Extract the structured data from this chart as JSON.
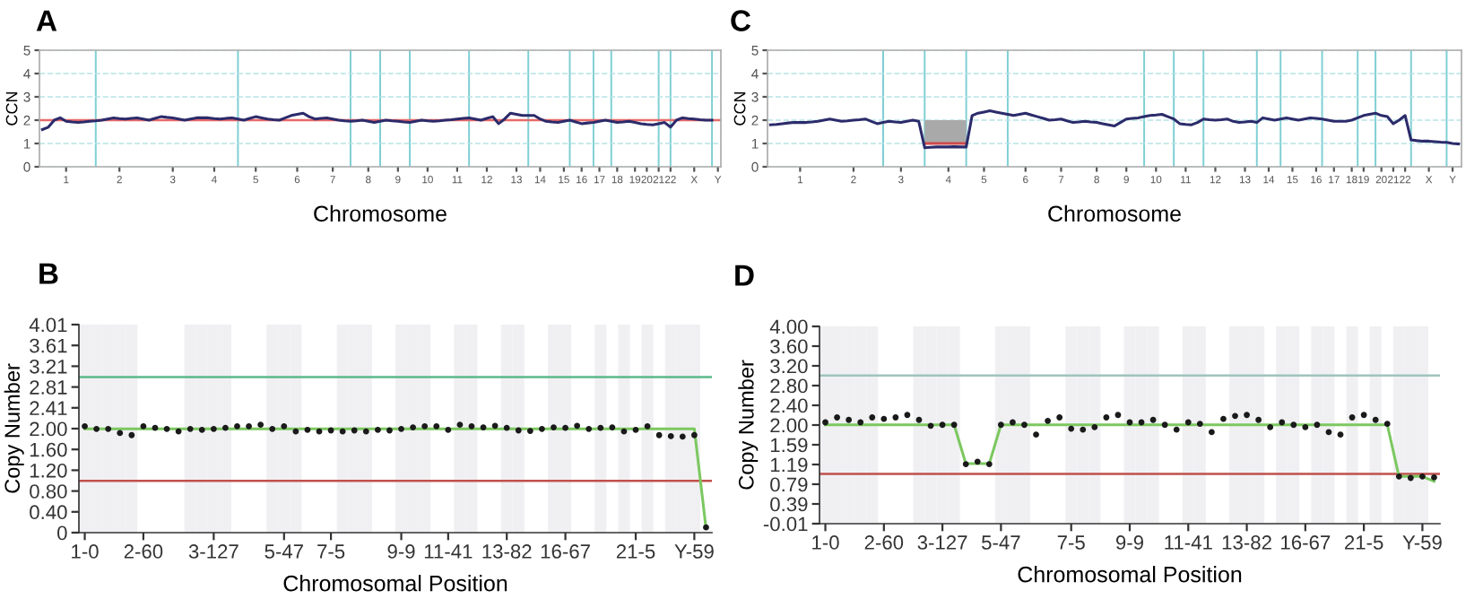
{
  "chart_data": [
    {
      "type": "line",
      "title": "A",
      "xlabel": "Chromosome",
      "ylabel": "CCN",
      "ylim": [
        0,
        5
      ],
      "yticks": [
        0,
        1,
        2,
        3,
        4,
        5
      ],
      "grid": "y",
      "categories": [
        null,
        null,
        null,
        null,
        "1",
        null,
        null,
        null,
        null,
        null,
        null,
        null,
        null,
        "2",
        null,
        null,
        null,
        null,
        null,
        null,
        null,
        null,
        "3",
        null,
        null,
        null,
        null,
        null,
        null,
        "4",
        null,
        null,
        null,
        null,
        null,
        null,
        "5",
        null,
        null,
        null,
        null,
        null,
        null,
        "6",
        null,
        null,
        null,
        null,
        null,
        "7",
        null,
        null,
        null,
        null,
        null,
        "8",
        null,
        null,
        null,
        null,
        "9",
        null,
        null,
        null,
        null,
        "10",
        null,
        null,
        null,
        null,
        "11",
        null,
        null,
        null,
        null,
        "12",
        null,
        null,
        null,
        null,
        "13",
        null,
        null,
        null,
        "14",
        null,
        null,
        null,
        "15",
        null,
        null,
        "16",
        null,
        null,
        "17",
        null,
        null,
        "18",
        null,
        null,
        "19",
        null,
        "20",
        null,
        "21",
        null,
        "22",
        null,
        null,
        null,
        "X",
        null,
        null,
        null,
        "Y"
      ],
      "ref_lines": [
        {
          "axis": "y",
          "value": 2,
          "color": "#e86a6a"
        }
      ],
      "series": [
        {
          "type": "bar",
          "color": "#7fcfd4",
          "values": [
            null,
            null,
            null,
            null,
            null,
            null,
            null,
            null,
            null,
            5,
            null,
            null,
            null,
            null,
            null,
            null,
            null,
            null,
            null,
            null,
            null,
            null,
            null,
            null,
            null,
            null,
            null,
            null,
            null,
            null,
            null,
            null,
            null,
            5,
            null,
            null,
            null,
            null,
            null,
            null,
            null,
            null,
            null,
            null,
            null,
            null,
            null,
            null,
            null,
            null,
            null,
            null,
            5,
            null,
            null,
            null,
            null,
            5,
            null,
            null,
            null,
            null,
            5,
            null,
            null,
            null,
            null,
            null,
            null,
            null,
            null,
            null,
            5,
            null,
            null,
            null,
            null,
            null,
            null,
            null,
            null,
            null,
            5,
            null,
            null,
            null,
            null,
            null,
            null,
            5,
            null,
            null,
            null,
            5,
            null,
            null,
            5,
            null,
            null,
            null,
            null,
            null,
            null,
            null,
            5,
            null,
            5,
            null,
            null,
            null,
            null,
            null,
            null,
            5,
            null
          ]
        },
        {
          "color": "#2b2b6b",
          "values": [
            1.6,
            1.7,
            2.0,
            2.1,
            1.95,
            1.92,
            1.9,
            1.92,
            1.95,
            1.97,
            2.0,
            2.05,
            2.1,
            2.07,
            2.05,
            2.08,
            2.1,
            2.05,
            2.0,
            2.08,
            2.15,
            2.12,
            2.1,
            2.05,
            2.0,
            2.05,
            2.1,
            2.1,
            2.1,
            2.07,
            2.05,
            2.08,
            2.1,
            2.05,
            2.0,
            2.08,
            2.15,
            2.1,
            2.05,
            2.02,
            2.0,
            2.1,
            2.2,
            2.25,
            2.3,
            2.15,
            2.05,
            2.08,
            2.1,
            2.05,
            2.0,
            1.97,
            1.95,
            1.97,
            2.0,
            1.95,
            1.9,
            1.95,
            2.0,
            1.97,
            1.95,
            1.92,
            1.9,
            1.95,
            2.0,
            1.97,
            1.95,
            1.97,
            2.0,
            2.02,
            2.05,
            2.08,
            2.1,
            2.05,
            2.0,
            2.08,
            2.15,
            1.85,
            2.05,
            2.3,
            2.25,
            2.2,
            2.2,
            2.2,
            2.05,
            1.95,
            1.92,
            1.9,
            1.95,
            2.0,
            1.92,
            1.85,
            1.88,
            1.9,
            1.95,
            2.0,
            1.95,
            1.9,
            1.92,
            1.95,
            1.9,
            1.85,
            1.82,
            1.8,
            1.85,
            1.9,
            1.7,
            2.0,
            2.1,
            2.07,
            2.05,
            2.02,
            2.0,
            2.0,
            null
          ]
        }
      ]
    },
    {
      "type": "line",
      "title": "C",
      "xlabel": "Chromosome",
      "ylabel": "CCN",
      "ylim": [
        0,
        5
      ],
      "yticks": [
        0,
        1,
        2,
        3,
        4,
        5
      ],
      "grid": "y",
      "categories": [
        null,
        null,
        null,
        null,
        null,
        "1",
        null,
        null,
        null,
        null,
        null,
        null,
        null,
        null,
        "2",
        null,
        null,
        null,
        null,
        null,
        null,
        null,
        "3",
        null,
        null,
        null,
        null,
        null,
        null,
        null,
        "4",
        null,
        null,
        null,
        null,
        null,
        "5",
        null,
        null,
        null,
        null,
        null,
        null,
        "6",
        null,
        null,
        null,
        null,
        null,
        "7",
        null,
        null,
        null,
        null,
        null,
        "8",
        null,
        null,
        null,
        null,
        "9",
        null,
        null,
        null,
        null,
        "10",
        null,
        null,
        null,
        null,
        "11",
        null,
        null,
        null,
        null,
        "12",
        null,
        null,
        null,
        null,
        "13",
        null,
        null,
        null,
        "14",
        null,
        null,
        null,
        "15",
        null,
        null,
        null,
        "16",
        null,
        null,
        "17",
        null,
        null,
        "18",
        null,
        "19",
        null,
        null,
        "20",
        null,
        "21",
        null,
        "22",
        null,
        null,
        null,
        "X",
        null,
        null,
        null,
        "Y",
        null
      ],
      "series": [
        {
          "type": "bar",
          "color": "#7fcfd4",
          "values": [
            null,
            null,
            null,
            null,
            null,
            null,
            null,
            null,
            null,
            null,
            null,
            null,
            null,
            null,
            null,
            null,
            null,
            null,
            null,
            5,
            null,
            null,
            null,
            null,
            null,
            null,
            5,
            null,
            null,
            null,
            null,
            null,
            null,
            5,
            null,
            null,
            null,
            null,
            null,
            null,
            5,
            null,
            null,
            null,
            null,
            null,
            null,
            null,
            null,
            null,
            null,
            null,
            null,
            null,
            null,
            null,
            null,
            null,
            null,
            null,
            null,
            null,
            null,
            5,
            null,
            null,
            null,
            null,
            5,
            null,
            null,
            null,
            null,
            5,
            null,
            null,
            null,
            null,
            null,
            null,
            null,
            null,
            5,
            null,
            null,
            null,
            5,
            null,
            null,
            null,
            null,
            null,
            null,
            5,
            null,
            null,
            null,
            null,
            null,
            5,
            null,
            null,
            5,
            null,
            null,
            null,
            null,
            null,
            5,
            null,
            null,
            null,
            null,
            null,
            5,
            null,
            null
          ]
        },
        {
          "color": "#d04a4a",
          "upper": [
            null,
            null,
            null,
            null,
            null,
            null,
            null,
            null,
            null,
            null,
            null,
            null,
            null,
            null,
            null,
            null,
            null,
            null,
            null,
            null,
            null,
            null,
            null,
            null,
            null,
            null,
            2.0,
            2.0,
            2.0,
            2.0,
            2.0,
            2.0,
            2.0,
            2.0,
            null,
            null,
            null,
            null,
            null,
            null,
            null,
            null,
            null,
            null,
            null,
            null,
            null,
            null,
            null,
            null,
            null,
            null,
            null,
            null,
            null,
            null,
            null,
            null,
            null,
            null,
            null,
            null,
            null,
            null,
            null,
            null,
            null,
            null,
            null,
            null,
            null,
            null,
            null,
            null,
            null,
            null,
            null,
            null,
            null,
            null,
            null,
            null,
            null,
            null,
            null,
            null,
            null,
            null,
            null,
            null,
            null,
            null,
            null,
            null,
            null,
            null,
            null,
            null,
            null,
            null,
            null,
            null,
            null,
            null,
            null,
            null,
            null,
            null,
            null,
            null,
            null,
            null,
            null,
            null,
            null,
            null,
            null
          ],
          "lower": [
            null,
            null,
            null,
            null,
            null,
            null,
            null,
            null,
            null,
            null,
            null,
            null,
            null,
            null,
            null,
            null,
            null,
            null,
            null,
            null,
            null,
            null,
            null,
            null,
            null,
            null,
            1.0,
            1.0,
            1.0,
            1.0,
            1.0,
            1.0,
            1.0,
            1.0,
            null,
            null,
            null,
            null,
            null,
            null,
            null,
            null,
            null,
            null,
            null,
            null,
            null,
            null,
            null,
            null,
            null,
            null,
            null,
            null,
            null,
            null,
            null,
            null,
            null,
            null,
            null,
            null,
            null,
            null,
            null,
            null,
            null,
            null,
            null,
            null,
            null,
            null,
            null,
            null,
            null,
            null,
            null,
            null,
            null,
            null,
            null,
            null,
            null,
            null,
            null,
            null,
            null,
            null,
            null,
            null,
            null,
            null,
            null,
            null,
            null,
            null,
            null,
            null,
            null,
            null,
            null,
            null,
            null,
            null,
            null,
            null,
            null,
            null,
            null,
            null,
            null,
            null,
            null,
            null,
            null,
            null,
            null
          ],
          "values": [
            null,
            null,
            null,
            null,
            null,
            null,
            null,
            null,
            null,
            null,
            null,
            null,
            null,
            null,
            null,
            null,
            null,
            null,
            null,
            null,
            null,
            null,
            null,
            null,
            null,
            null,
            1.0,
            1.0,
            1.0,
            1.0,
            1.0,
            1.0,
            1.0,
            1.0,
            null,
            null,
            null,
            null,
            null,
            null,
            null,
            null,
            null,
            null,
            null,
            null,
            null,
            null,
            null,
            null,
            null,
            null,
            null,
            null,
            null,
            null,
            null,
            null,
            null,
            null,
            null,
            null,
            null,
            null,
            null,
            null,
            null,
            null,
            null,
            null,
            null,
            null,
            null,
            null,
            null,
            null,
            null,
            null,
            null,
            null,
            null,
            null,
            null,
            null,
            null,
            null,
            null,
            null,
            null,
            null,
            null,
            null,
            null,
            null,
            null,
            null,
            null,
            null,
            null,
            null,
            null,
            null,
            null,
            null,
            null,
            null,
            null,
            null,
            null,
            null,
            null,
            null,
            null,
            null,
            null,
            null,
            null
          ]
        },
        {
          "color": "#2b2b6b",
          "values": [
            1.8,
            1.82,
            1.85,
            1.88,
            1.9,
            1.9,
            1.9,
            1.92,
            1.95,
            2.0,
            2.05,
            2.0,
            1.95,
            1.97,
            2.0,
            2.02,
            2.05,
            1.95,
            1.85,
            1.9,
            1.95,
            1.92,
            1.9,
            1.95,
            2.0,
            1.95,
            0.82,
            0.84,
            0.85,
            0.85,
            0.85,
            0.86,
            0.85,
            0.85,
            2.2,
            2.3,
            2.35,
            2.4,
            2.35,
            2.3,
            2.25,
            2.2,
            2.25,
            2.3,
            2.22,
            2.15,
            2.08,
            2.0,
            2.02,
            2.05,
            1.97,
            1.9,
            1.92,
            1.95,
            1.92,
            1.9,
            1.85,
            1.8,
            1.75,
            1.9,
            2.05,
            2.08,
            2.1,
            2.15,
            2.2,
            2.22,
            2.25,
            2.15,
            2.05,
            1.85,
            1.82,
            1.8,
            1.9,
            2.05,
            2.02,
            2.0,
            2.02,
            2.05,
            1.95,
            1.9,
            1.92,
            1.95,
            1.9,
            2.1,
            2.05,
            2.0,
            2.05,
            2.1,
            2.05,
            2.0,
            2.05,
            2.1,
            2.08,
            2.05,
            2.0,
            1.95,
            1.95,
            1.95,
            2.0,
            2.1,
            2.2,
            2.25,
            2.3,
            2.2,
            2.15,
            1.85,
            2.0,
            2.2,
            1.15,
            1.12,
            1.1,
            1.1,
            1.08,
            1.06,
            1.05,
            1.0,
            0.98
          ]
        }
      ]
    },
    {
      "type": "line",
      "title": "B",
      "xlabel": "Chromosomal Position",
      "ylabel": "Copy Number",
      "ylim": [
        0,
        4.01
      ],
      "yticks": [
        0,
        {
          "value": 0.401,
          "label": "0.40"
        },
        {
          "value": 0.802,
          "label": "0.80"
        },
        {
          "value": 1.203,
          "label": "1.20"
        },
        {
          "value": 1.604,
          "label": "1.60"
        },
        {
          "value": 2.005,
          "label": "2.00"
        },
        {
          "value": 2.406,
          "label": "2.41"
        },
        {
          "value": 2.807,
          "label": "2.81"
        },
        {
          "value": 3.208,
          "label": "3.21"
        },
        {
          "value": 3.609,
          "label": "3.61"
        },
        {
          "value": 4.01,
          "label": "4.01"
        }
      ],
      "categories": [
        "1-0",
        null,
        null,
        null,
        null,
        "2-60",
        null,
        null,
        null,
        null,
        null,
        "3-127",
        null,
        null,
        null,
        null,
        null,
        "5-47",
        null,
        null,
        null,
        "7-5",
        null,
        null,
        null,
        null,
        null,
        "9-9",
        null,
        null,
        null,
        "11-41",
        null,
        null,
        null,
        null,
        "13-82",
        null,
        null,
        null,
        null,
        "16-67",
        null,
        null,
        null,
        null,
        null,
        "21-5",
        null,
        null,
        null,
        null,
        "Y-59",
        null
      ],
      "ref_lines": [
        {
          "axis": "y",
          "value": 3.0,
          "color": "#5bb98a"
        },
        {
          "axis": "y",
          "value": 1.0,
          "color": "#c0504d"
        }
      ],
      "series": [
        {
          "type": "bar",
          "color": "#f0f0f3",
          "values": [
            4.01,
            4.01,
            4.01,
            4.01,
            4.01,
            null,
            null,
            null,
            null,
            4.01,
            4.01,
            4.01,
            4.01,
            null,
            null,
            null,
            4.01,
            4.01,
            4.01,
            null,
            null,
            null,
            4.01,
            4.01,
            4.01,
            null,
            null,
            4.01,
            4.01,
            4.01,
            null,
            null,
            4.01,
            4.01,
            null,
            null,
            4.01,
            4.01,
            null,
            null,
            4.01,
            4.01,
            null,
            null,
            4.01,
            null,
            4.01,
            null,
            4.01,
            null,
            4.01,
            4.01,
            4.01,
            null
          ]
        },
        {
          "color": "#7cc860",
          "values": [
            2.0,
            2.0,
            2.0,
            2.0,
            2.0,
            2.0,
            2.0,
            2.0,
            2.0,
            2.0,
            2.0,
            2.0,
            2.0,
            2.0,
            2.0,
            2.0,
            2.0,
            2.0,
            2.0,
            2.0,
            2.0,
            2.0,
            2.0,
            2.0,
            2.0,
            2.0,
            2.0,
            2.0,
            2.0,
            2.0,
            2.0,
            2.0,
            2.0,
            2.0,
            2.0,
            2.0,
            2.0,
            2.0,
            2.0,
            2.0,
            2.0,
            2.0,
            2.0,
            2.0,
            2.0,
            2.0,
            2.0,
            2.0,
            2.0,
            2.0,
            2.0,
            2.0,
            2.0,
            0.08
          ]
        },
        {
          "type": "scatter",
          "marker": "circle",
          "color": "#1a1a1a",
          "values": [
            2.05,
            2.0,
            2.0,
            1.92,
            1.88,
            2.05,
            2.02,
            2.0,
            1.95,
            2.0,
            1.98,
            2.0,
            2.02,
            2.05,
            2.05,
            2.08,
            2.0,
            2.05,
            1.95,
            1.98,
            1.95,
            1.97,
            1.95,
            1.97,
            1.95,
            1.98,
            1.97,
            2.0,
            2.03,
            2.05,
            2.05,
            1.98,
            2.08,
            2.05,
            2.03,
            2.06,
            2.02,
            1.97,
            1.96,
            2.0,
            2.03,
            2.02,
            2.06,
            2.0,
            2.02,
            2.03,
            1.95,
            1.98,
            2.05,
            1.88,
            1.86,
            1.85,
            1.88,
            0.1
          ]
        }
      ]
    },
    {
      "type": "line",
      "title": "D",
      "xlabel": "Chromosomal Position",
      "ylabel": "Copy Number",
      "ylim": [
        -0.01,
        4.0
      ],
      "yticks": [
        -0.01,
        {
          "value": 0.391,
          "label": "0.39"
        },
        {
          "value": 0.792,
          "label": "0.79"
        },
        {
          "value": 1.193,
          "label": "1.19"
        },
        {
          "value": 1.594,
          "label": "1.59"
        },
        {
          "value": 1.995,
          "label": "2.00"
        },
        {
          "value": 2.396,
          "label": "2.40"
        },
        {
          "value": 2.797,
          "label": "2.80"
        },
        {
          "value": 3.198,
          "label": "3.20"
        },
        {
          "value": 3.599,
          "label": "3.60"
        },
        {
          "value": 4.0,
          "label": "4.00"
        }
      ],
      "categories": [
        "1-0",
        null,
        null,
        null,
        null,
        "2-60",
        null,
        null,
        null,
        null,
        "3-127",
        null,
        null,
        null,
        null,
        "5-47",
        null,
        null,
        null,
        null,
        null,
        "7-5",
        null,
        null,
        null,
        null,
        "9-9",
        null,
        null,
        null,
        null,
        "11-41",
        null,
        null,
        null,
        null,
        "13-82",
        null,
        null,
        null,
        null,
        "16-67",
        null,
        null,
        null,
        null,
        "21-5",
        null,
        null,
        null,
        null,
        "Y-59",
        null
      ],
      "ref_lines": [
        {
          "axis": "y",
          "value": 3.0,
          "color": "#9fc4bc"
        },
        {
          "axis": "y",
          "value": 1.0,
          "color": "#c0504d"
        }
      ],
      "series": [
        {
          "type": "bar",
          "color": "#f0f0f3",
          "values": [
            4.0,
            4.0,
            4.0,
            4.0,
            4.0,
            null,
            null,
            null,
            4.0,
            4.0,
            4.0,
            4.0,
            null,
            null,
            null,
            4.0,
            4.0,
            4.0,
            null,
            null,
            null,
            4.0,
            4.0,
            4.0,
            null,
            null,
            4.0,
            4.0,
            4.0,
            null,
            null,
            4.0,
            4.0,
            null,
            null,
            4.0,
            4.0,
            4.0,
            null,
            4.0,
            4.0,
            null,
            4.0,
            4.0,
            null,
            4.0,
            null,
            4.0,
            null,
            4.0,
            4.0,
            4.0,
            null
          ]
        },
        {
          "color": "#7cc860",
          "values": [
            2.0,
            2.0,
            2.0,
            2.0,
            2.0,
            2.0,
            2.0,
            2.0,
            2.0,
            2.0,
            2.0,
            2.0,
            1.21,
            1.21,
            1.21,
            2.0,
            2.0,
            2.0,
            2.0,
            2.0,
            2.0,
            2.0,
            2.0,
            2.0,
            2.0,
            2.0,
            2.0,
            2.0,
            2.0,
            2.0,
            2.0,
            2.0,
            2.0,
            2.0,
            2.0,
            2.0,
            2.0,
            2.0,
            2.0,
            2.0,
            2.0,
            2.0,
            2.0,
            2.0,
            2.0,
            2.0,
            2.0,
            2.0,
            2.0,
            0.95,
            0.95,
            0.95,
            0.85
          ]
        },
        {
          "type": "scatter",
          "marker": "circle",
          "color": "#1a1a1a",
          "values": [
            2.05,
            2.15,
            2.1,
            2.05,
            2.15,
            2.12,
            2.15,
            2.2,
            2.1,
            1.98,
            2.0,
            2.0,
            1.2,
            1.25,
            1.2,
            2.0,
            2.05,
            2.0,
            1.8,
            2.08,
            2.15,
            1.92,
            1.9,
            1.95,
            2.15,
            2.2,
            2.05,
            2.05,
            2.1,
            2.0,
            1.9,
            2.05,
            2.02,
            1.85,
            2.12,
            2.18,
            2.2,
            2.1,
            1.95,
            2.05,
            2.0,
            1.95,
            2.0,
            1.85,
            1.8,
            2.15,
            2.2,
            2.1,
            2.02,
            0.95,
            0.92,
            0.95,
            0.93
          ]
        }
      ]
    }
  ]
}
